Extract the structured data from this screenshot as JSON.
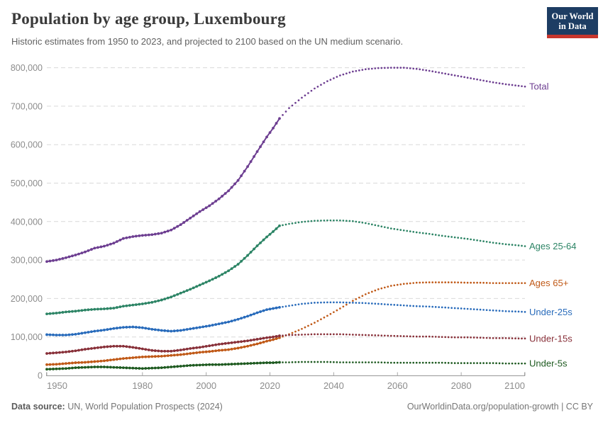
{
  "header": {
    "title": "Population by age group, Luxembourg",
    "subtitle": "Historic estimates from 1950 to 2023, and projected to 2100 based on the UN medium scenario.",
    "logo": {
      "line1": "Our World",
      "line2": "in Data",
      "bg_color": "#1d3d63",
      "bar_color": "#c7362d"
    }
  },
  "footer": {
    "datasource_label": "Data source:",
    "datasource_value": " UN, World Population Prospects (2024)",
    "credit": "OurWorldinData.org/population-growth | CC BY"
  },
  "chart_data": {
    "type": "line",
    "title": "Population by age group, Luxembourg",
    "xlabel": "",
    "ylabel": "",
    "xlim": [
      1950,
      2100
    ],
    "ylim": [
      0,
      800000
    ],
    "xticks": [
      1950,
      1980,
      2000,
      2020,
      2040,
      2060,
      2080,
      2100
    ],
    "yticks": [
      0,
      100000,
      200000,
      300000,
      400000,
      500000,
      600000,
      700000,
      800000
    ],
    "grid": "horizontal-dashed",
    "legend_position": "right-of-line-ends",
    "projection_start_year": 2023,
    "style_note": "solid line with year markers up to 2023, dotted projection 2023-2100",
    "historic_x": [
      1950,
      1953,
      1956,
      1959,
      1962,
      1965,
      1968,
      1971,
      1974,
      1977,
      1980,
      1983,
      1986,
      1989,
      1992,
      1995,
      1998,
      2001,
      2004,
      2007,
      2010,
      2013,
      2016,
      2019,
      2021,
      2023
    ],
    "projected_x": [
      2023,
      2026,
      2030,
      2034,
      2038,
      2042,
      2046,
      2050,
      2054,
      2058,
      2062,
      2066,
      2070,
      2074,
      2078,
      2082,
      2086,
      2090,
      2094,
      2098,
      2100
    ],
    "series": [
      {
        "name": "Total",
        "color": "#6D3E91",
        "historic": [
          296000,
          300000,
          306000,
          313000,
          321000,
          331000,
          336000,
          344000,
          356000,
          361000,
          364000,
          366000,
          370000,
          378000,
          392000,
          409000,
          426000,
          441000,
          459000,
          480000,
          507000,
          543000,
          582000,
          620000,
          643000,
          668000
        ],
        "projected": [
          668000,
          695000,
          722000,
          746000,
          765000,
          780000,
          790000,
          796000,
          799000,
          800000,
          800000,
          797000,
          792000,
          786000,
          780000,
          774000,
          768000,
          762000,
          757000,
          753000,
          751000
        ]
      },
      {
        "name": "Ages 25-64",
        "color": "#2C8465",
        "historic": [
          160000,
          162000,
          165000,
          167000,
          170000,
          172000,
          173000,
          175000,
          180000,
          183000,
          186000,
          190000,
          196000,
          204000,
          214000,
          224000,
          235000,
          246000,
          258000,
          272000,
          289000,
          312000,
          337000,
          360000,
          374000,
          389000
        ],
        "projected": [
          389000,
          394000,
          399000,
          402000,
          403000,
          403000,
          401000,
          396000,
          389000,
          382000,
          377000,
          372000,
          368000,
          363000,
          359000,
          355000,
          350000,
          345000,
          341000,
          338000,
          336000
        ]
      },
      {
        "name": "Ages 65+",
        "color": "#C05917",
        "historic": [
          28000,
          29000,
          31000,
          33000,
          34000,
          36000,
          38000,
          41000,
          44000,
          46000,
          48000,
          49000,
          50000,
          52000,
          54000,
          57000,
          60000,
          62000,
          65000,
          67000,
          71000,
          76000,
          82000,
          89000,
          93000,
          98000
        ],
        "projected": [
          98000,
          107000,
          121000,
          137000,
          155000,
          174000,
          194000,
          211000,
          224000,
          233000,
          238000,
          241000,
          242000,
          242000,
          242000,
          241000,
          241000,
          240000,
          240000,
          240000,
          240000
        ]
      },
      {
        "name": "Under-25s",
        "color": "#286BBB",
        "historic": [
          106000,
          105000,
          105000,
          107000,
          111000,
          115000,
          118000,
          122000,
          125000,
          126000,
          124000,
          120000,
          117000,
          115000,
          117000,
          121000,
          125000,
          129000,
          134000,
          139000,
          146000,
          154000,
          163000,
          171000,
          174000,
          177000
        ],
        "projected": [
          177000,
          181000,
          186000,
          189000,
          190000,
          190000,
          189000,
          188000,
          186000,
          184000,
          182000,
          180000,
          179000,
          177000,
          175000,
          173000,
          171000,
          169000,
          167000,
          166000,
          165000
        ]
      },
      {
        "name": "Under-15s",
        "color": "#883039",
        "historic": [
          57000,
          59000,
          61000,
          64000,
          68000,
          71000,
          74000,
          76000,
          76000,
          73000,
          69000,
          65000,
          63000,
          63000,
          66000,
          70000,
          73000,
          77000,
          81000,
          84000,
          87000,
          90000,
          94000,
          98000,
          100000,
          103000
        ],
        "projected": [
          103000,
          105000,
          106000,
          107000,
          107000,
          107000,
          106000,
          105000,
          104000,
          103000,
          102000,
          101000,
          101000,
          100000,
          99000,
          99000,
          98000,
          97000,
          97000,
          96000,
          96000
        ]
      },
      {
        "name": "Under-5s",
        "color": "#1E5A20",
        "historic": [
          16000,
          17000,
          18000,
          20000,
          21000,
          22000,
          22000,
          21000,
          20000,
          19000,
          18000,
          19000,
          20000,
          22000,
          24000,
          26000,
          27000,
          28000,
          28000,
          29000,
          30000,
          31000,
          32000,
          33000,
          33000,
          34000
        ],
        "projected": [
          34000,
          34000,
          35000,
          35000,
          35000,
          34000,
          34000,
          34000,
          34000,
          33000,
          33000,
          33000,
          33000,
          33000,
          32000,
          32000,
          32000,
          32000,
          31000,
          31000,
          31000
        ]
      }
    ]
  }
}
